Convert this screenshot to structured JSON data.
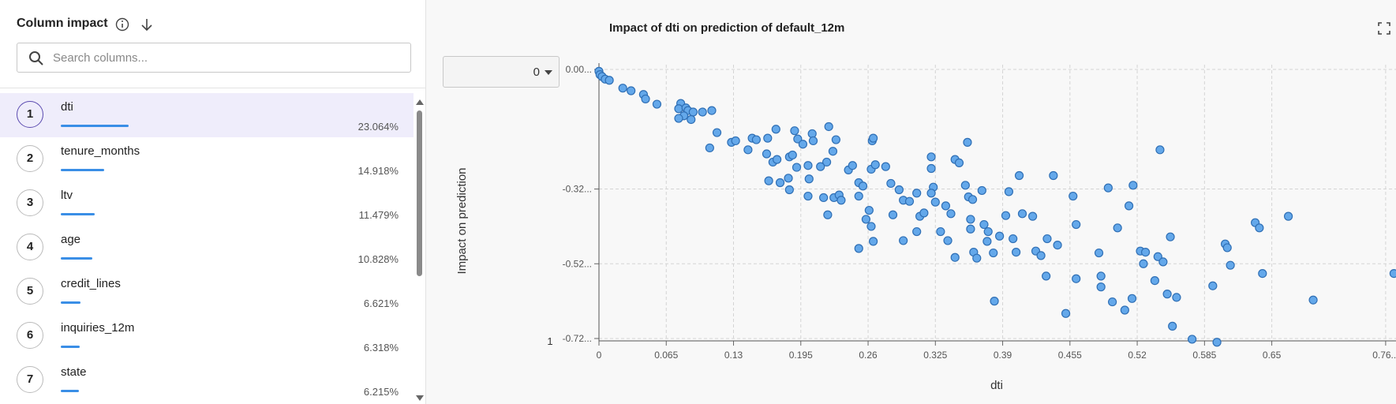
{
  "panel": {
    "title": "Column impact",
    "search_placeholder": "Search columns...",
    "columns": {
      "ranks": [
        1,
        2,
        3,
        4,
        5,
        6,
        7
      ],
      "names": [
        "dti",
        "tenure_months",
        "ltv",
        "age",
        "credit_lines",
        "inquiries_12m",
        "state"
      ],
      "values": [
        23.064,
        14.918,
        11.479,
        10.828,
        6.621,
        6.318,
        6.215
      ],
      "value_labels": [
        "23.064%",
        "14.918%",
        "11.479%",
        "10.828%",
        "6.621%",
        "6.318%",
        "6.215%"
      ]
    }
  },
  "dropdown": "0",
  "corner_label": "1",
  "chart_data": {
    "type": "scatter",
    "title": "Impact of dti on prediction of default_12m",
    "x_label": "dti",
    "y_label": "Impact on prediction",
    "color": "#64a8ea",
    "grid": true,
    "xlim": [
      0,
      0.77
    ],
    "ylim": [
      -0.72,
      0
    ],
    "xticks": [
      0,
      0.065,
      0.13,
      0.195,
      0.26,
      0.325,
      0.39,
      0.455,
      0.52,
      0.585,
      0.65,
      {
        "value": 0.76,
        "label": "0.76..."
      }
    ],
    "yticks": [
      {
        "value": 0,
        "label": "0.00..."
      },
      {
        "value": -0.32,
        "label": "-0.32..."
      },
      {
        "value": -0.52,
        "label": "-0.52..."
      },
      {
        "value": -0.72,
        "label": "-0.72..."
      }
    ],
    "x": [
      0.0,
      0.001,
      0.003,
      0.006,
      0.01,
      0.023,
      0.031,
      0.043,
      0.045,
      0.056,
      0.079,
      0.077,
      0.084,
      0.086,
      0.091,
      0.082,
      0.1,
      0.109,
      0.077,
      0.089,
      0.114,
      0.107,
      0.128,
      0.132,
      0.144,
      0.148,
      0.152,
      0.163,
      0.171,
      0.189,
      0.192,
      0.206,
      0.207,
      0.222,
      0.229,
      0.162,
      0.168,
      0.172,
      0.184,
      0.187,
      0.197,
      0.226,
      0.22,
      0.214,
      0.202,
      0.191,
      0.183,
      0.164,
      0.175,
      0.184,
      0.203,
      0.202,
      0.217,
      0.227,
      0.232,
      0.221,
      0.234,
      0.251,
      0.251,
      0.255,
      0.241,
      0.245,
      0.263,
      0.267,
      0.277,
      0.264,
      0.265,
      0.251,
      0.261,
      0.258,
      0.263,
      0.265,
      0.282,
      0.284,
      0.29,
      0.294,
      0.294,
      0.3,
      0.307,
      0.31,
      0.314,
      0.307,
      0.321,
      0.321,
      0.323,
      0.321,
      0.325,
      0.33,
      0.335,
      0.337,
      0.34,
      0.344,
      0.344,
      0.348,
      0.354,
      0.356,
      0.357,
      0.361,
      0.359,
      0.359,
      0.362,
      0.365,
      0.37,
      0.372,
      0.375,
      0.376,
      0.381,
      0.382,
      0.387,
      0.393,
      0.396,
      0.4,
      0.403,
      0.406,
      0.409,
      0.419,
      0.422,
      0.427,
      0.432,
      0.433,
      0.439,
      0.443,
      0.451,
      0.458,
      0.461,
      0.461,
      0.483,
      0.485,
      0.485,
      0.492,
      0.496,
      0.501,
      0.508,
      0.516,
      0.512,
      0.515,
      0.523,
      0.526,
      0.528,
      0.537,
      0.54,
      0.545,
      0.542,
      0.552,
      0.549,
      0.554,
      0.558,
      0.573,
      0.593,
      0.597,
      0.605,
      0.607,
      0.61,
      0.634,
      0.638,
      0.641,
      0.666,
      0.69,
      0.768
    ],
    "values": [
      -0.005,
      -0.014,
      -0.019,
      -0.026,
      -0.029,
      -0.05,
      -0.057,
      -0.067,
      -0.079,
      -0.093,
      -0.091,
      -0.105,
      -0.103,
      -0.11,
      -0.114,
      -0.124,
      -0.114,
      -0.11,
      -0.131,
      -0.134,
      -0.169,
      -0.21,
      -0.195,
      -0.191,
      -0.215,
      -0.184,
      -0.188,
      -0.184,
      -0.16,
      -0.164,
      -0.186,
      -0.172,
      -0.191,
      -0.153,
      -0.188,
      -0.226,
      -0.248,
      -0.241,
      -0.234,
      -0.229,
      -0.2,
      -0.219,
      -0.248,
      -0.26,
      -0.257,
      -0.262,
      -0.291,
      -0.298,
      -0.303,
      -0.322,
      -0.293,
      -0.339,
      -0.343,
      -0.343,
      -0.336,
      -0.389,
      -0.35,
      -0.339,
      -0.303,
      -0.312,
      -0.269,
      -0.257,
      -0.267,
      -0.255,
      -0.26,
      -0.191,
      -0.184,
      -0.479,
      -0.377,
      -0.401,
      -0.42,
      -0.46,
      -0.305,
      -0.389,
      -0.322,
      -0.35,
      -0.458,
      -0.353,
      -0.331,
      -0.393,
      -0.384,
      -0.434,
      -0.234,
      -0.265,
      -0.315,
      -0.331,
      -0.355,
      -0.434,
      -0.365,
      -0.458,
      -0.386,
      -0.503,
      -0.241,
      -0.25,
      -0.31,
      -0.195,
      -0.341,
      -0.348,
      -0.401,
      -0.427,
      -0.489,
      -0.505,
      -0.324,
      -0.415,
      -0.46,
      -0.434,
      -0.491,
      -0.62,
      -0.446,
      -0.391,
      -0.327,
      -0.453,
      -0.489,
      -0.284,
      -0.386,
      -0.393,
      -0.486,
      -0.498,
      -0.553,
      -0.453,
      -0.284,
      -0.47,
      -0.653,
      -0.339,
      -0.415,
      -0.56,
      -0.491,
      -0.553,
      -0.582,
      -0.317,
      -0.622,
      -0.424,
      -0.644,
      -0.31,
      -0.365,
      -0.613,
      -0.486,
      -0.52,
      -0.489,
      -0.565,
      -0.501,
      -0.515,
      -0.215,
      -0.448,
      -0.601,
      -0.687,
      -0.61,
      -0.722,
      -0.579,
      -0.73,
      -0.467,
      -0.477,
      -0.524,
      -0.41,
      -0.424,
      -0.546,
      -0.393,
      -0.617,
      -0.546
    ]
  }
}
